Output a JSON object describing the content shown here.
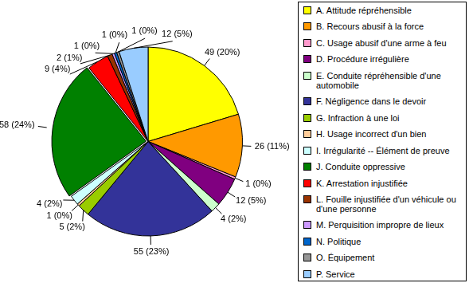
{
  "chart_data": {
    "type": "pie",
    "categories": [
      "A. Attitude répréhensible",
      "B. Recours abusif à la force",
      "C. Usage abusif d'une arme à feu",
      "D. Procédure irrégulière",
      "E. Conduite répréhensible d'une automobile",
      "F. Négligence dans le devoir",
      "G. Infraction à une loi",
      "H. Usage incorrect d'un bien",
      "I. Irrégularité -- Élément de preuve",
      "J. Conduite oppressive",
      "K. Arrestation injustifiée",
      "L. Fouille injustifiée d'un véhicule ou d'une personne",
      "M. Perquisition impropre de lieux",
      "N. Politique",
      "O. Équipement",
      "P. Service"
    ],
    "values": [
      49,
      26,
      1,
      12,
      4,
      55,
      5,
      1,
      4,
      58,
      9,
      2,
      1,
      1,
      1,
      12
    ],
    "value_labels": [
      "49 (20%)",
      "26 (11%)",
      "1 (0%)",
      "12 (5%)",
      "4 (2%)",
      "55 (23%)",
      "5 (2%)",
      "1 (0%)",
      "4 (2%)",
      "58 (24%)",
      "9 (4%)",
      "2 (1%)",
      "1 (0%)",
      "1 (0%)",
      "1 (0%)",
      "12 (5%)"
    ],
    "colors": [
      "#FFFF00",
      "#FF9900",
      "#FF99CC",
      "#800080",
      "#CCFFCC",
      "#333399",
      "#99CC00",
      "#FFCC99",
      "#CCFFFF",
      "#008000",
      "#FF0000",
      "#993300",
      "#CC99FF",
      "#0066CC",
      "#969696",
      "#99CCFF"
    ],
    "data_labels": true,
    "legend": "right"
  }
}
